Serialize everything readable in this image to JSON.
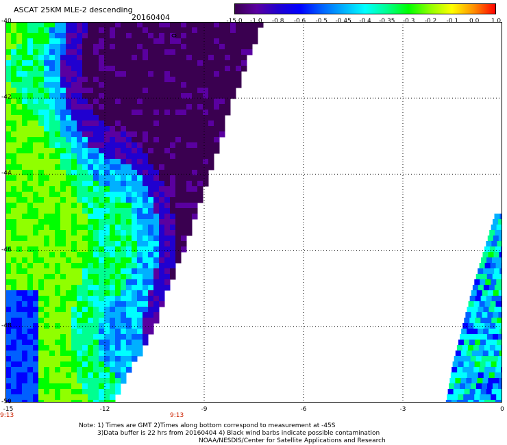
{
  "header": {
    "title": "ASCAT 25KM MLE-2 descending",
    "date": "20160404"
  },
  "colorbar": {
    "labels": [
      "-15.0",
      "-1.0",
      "-0.8",
      "-0.6",
      "-0.5",
      "-0.45",
      "-0.4",
      "-0.35",
      "-0.3",
      "-0.2",
      "-0.1",
      "0.0",
      "1.0"
    ],
    "colors": [
      "#3a0050",
      "#5a00a0",
      "#2000d0",
      "#0000ff",
      "#0060ff",
      "#00b0ff",
      "#00ffff",
      "#00ff90",
      "#00ff00",
      "#90ff00",
      "#ffff00",
      "#ff9000",
      "#ff0000"
    ]
  },
  "axes": {
    "lat_labels": [
      "-40",
      "-42",
      "-44",
      "-46",
      "-48",
      "-50"
    ],
    "lon_labels": [
      "-15",
      "-12",
      "-9",
      "-6",
      "-3",
      "0"
    ],
    "time_labels": [
      "9:13",
      "9:13"
    ]
  },
  "map_data": {
    "lon_range": [
      -15,
      0
    ],
    "lat_range": [
      -40,
      -50
    ],
    "swath_west_edge_lon": -15,
    "swath_east_edge": [
      {
        "lat": -40,
        "lon": -7.3
      },
      {
        "lat": -42,
        "lon": -8.2
      },
      {
        "lat": -44,
        "lon": -8.9
      },
      {
        "lat": -46,
        "lon": -9.7
      },
      {
        "lat": -48,
        "lon": -10.6
      },
      {
        "lat": -50,
        "lon": -11.8
      }
    ],
    "east_swath_west_edge": [
      {
        "lat": -45,
        "lon": -0.2
      },
      {
        "lat": -47,
        "lon": -0.9
      },
      {
        "lat": -49,
        "lon": -1.5
      },
      {
        "lat": -50,
        "lon": -1.7
      }
    ]
  },
  "notes": {
    "line1": "Note: 1) Times are GMT 2)Times along bottom correspond to measurement at -45S",
    "line2": "3)Data buffer is 22 hrs from 20160404 4) Black wind barbs indicate possible contamination",
    "line3": "NOAA/NESDIS/Center for Satellite Applications and Research"
  }
}
